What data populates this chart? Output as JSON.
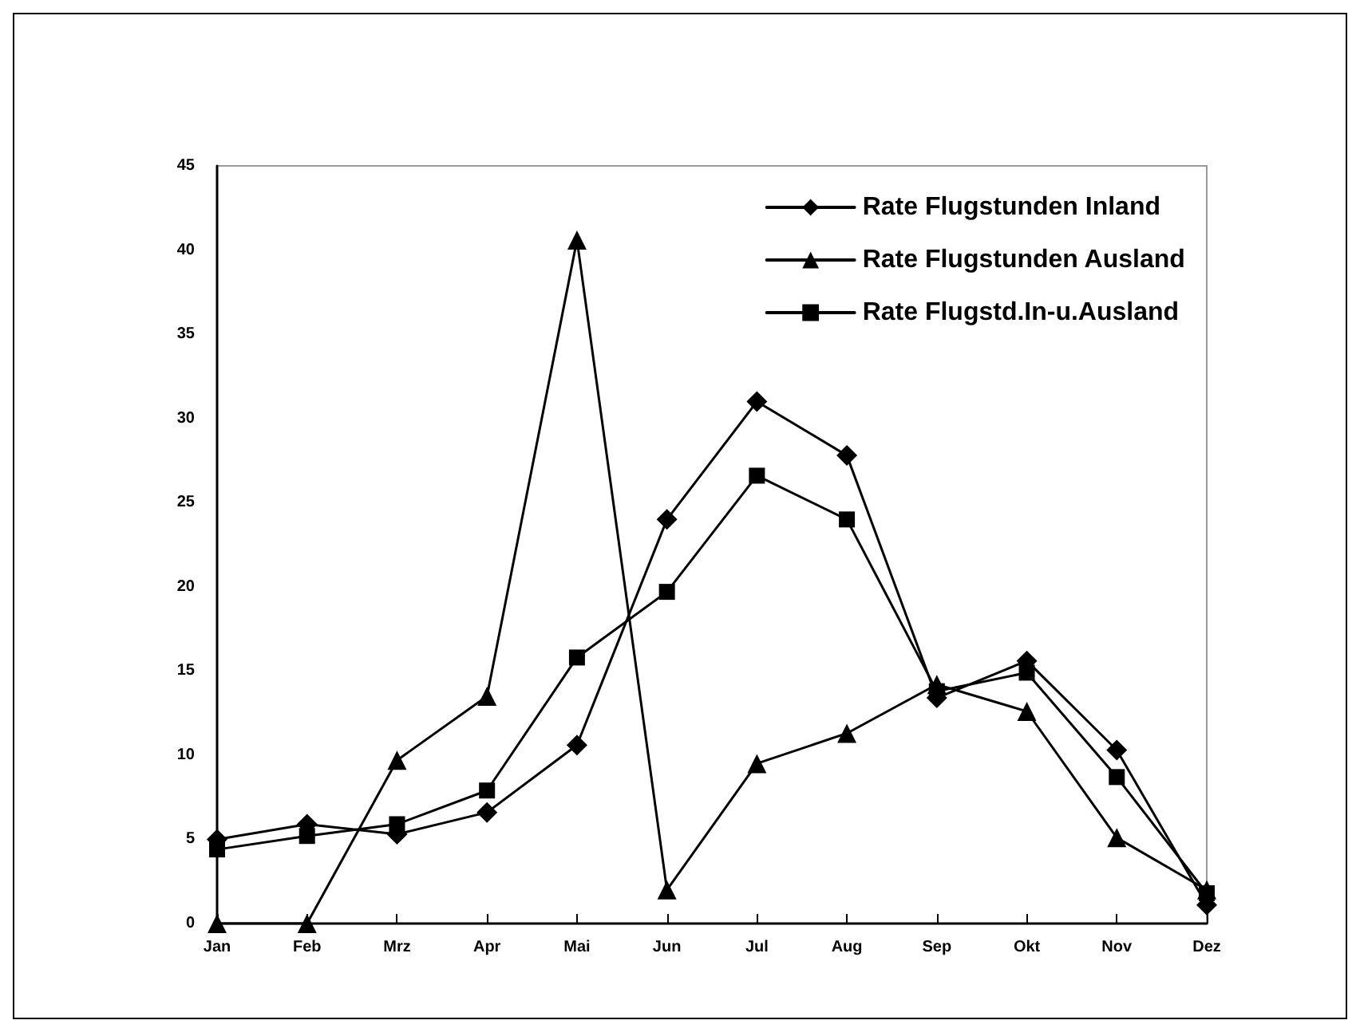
{
  "chart_data": {
    "type": "line",
    "categories": [
      "Jan",
      "Feb",
      "Mrz",
      "Apr",
      "Mai",
      "Jun",
      "Jul",
      "Aug",
      "Sep",
      "Okt",
      "Nov",
      "Dez"
    ],
    "series": [
      {
        "name": "Rate Flugstunden Inland",
        "color": "#000000",
        "marker": "diamond",
        "values": [
          5.0,
          5.9,
          5.3,
          6.6,
          10.6,
          24.0,
          31.0,
          27.8,
          13.4,
          15.6,
          10.3,
          1.1
        ]
      },
      {
        "name": "Rate Flugstunden Ausland",
        "color": "#000000",
        "marker": "triangle",
        "values": [
          0,
          0,
          9.7,
          13.5,
          40.6,
          2.0,
          9.5,
          11.3,
          14.2,
          12.6,
          5.1,
          2.0
        ]
      },
      {
        "name": "Rate Flugstd.In-u.Ausland",
        "color": "#000000",
        "marker": "square",
        "values": [
          4.4,
          5.2,
          5.9,
          7.9,
          15.8,
          19.7,
          26.6,
          24.0,
          13.8,
          14.9,
          8.7,
          1.8
        ]
      }
    ],
    "ylim": [
      0,
      45
    ],
    "yticks": [
      0,
      5,
      10,
      15,
      20,
      25,
      30,
      35,
      40,
      45
    ],
    "grid": false,
    "legend": "top right",
    "line_style": "solid"
  }
}
